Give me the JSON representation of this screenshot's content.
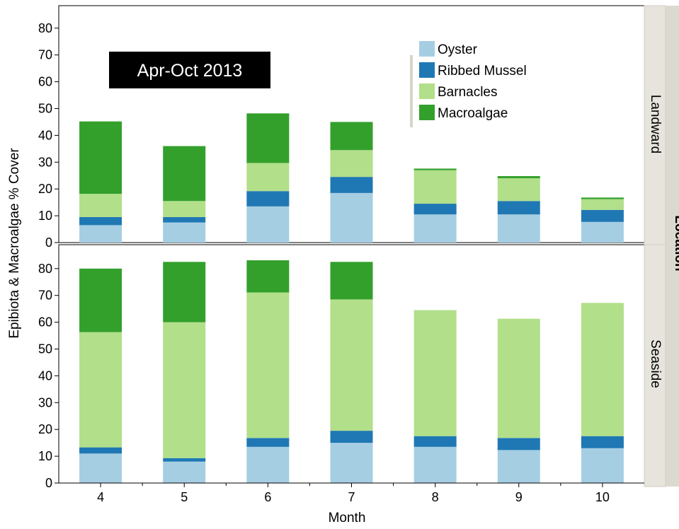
{
  "chart_data": {
    "type": "bar",
    "stacked": true,
    "annotation": "Apr-Oct 2013",
    "xlabel": "Month",
    "ylabel": "Epibiota & Macroalgae % Cover",
    "facet_label": "Location",
    "categories": [
      "4",
      "5",
      "6",
      "7",
      "8",
      "9",
      "10"
    ],
    "ylim": [
      0,
      85
    ],
    "yticks": [
      0,
      10,
      20,
      30,
      40,
      50,
      60,
      70,
      80
    ],
    "legend_position": "top-right",
    "colors": {
      "Oyster": "#a6cee3",
      "Ribbed Mussel": "#1f78b4",
      "Barnacles": "#b2df8a",
      "Macroalgae": "#33a02c"
    },
    "legend": [
      "Oyster",
      "Ribbed Mussel",
      "Barnacles",
      "Macroalgae"
    ],
    "panels": [
      {
        "label": "Landward",
        "series": [
          {
            "name": "Oyster",
            "values": [
              6.5,
              7.5,
              13.5,
              18.5,
              10.5,
              10.5,
              7.7
            ]
          },
          {
            "name": "Ribbed Mussel",
            "values": [
              3,
              2,
              5.7,
              6,
              4,
              5,
              4.5
            ]
          },
          {
            "name": "Barnacles",
            "values": [
              8.7,
              6,
              10.5,
              10,
              12.5,
              8.5,
              4
            ]
          },
          {
            "name": "Macroalgae",
            "values": [
              27,
              20.5,
              18.5,
              10.5,
              0.6,
              0.8,
              0.6
            ]
          }
        ]
      },
      {
        "label": "Seaside",
        "series": [
          {
            "name": "Oyster",
            "values": [
              11,
              8,
              13.5,
              15,
              13.5,
              12.3,
              13
            ]
          },
          {
            "name": "Ribbed Mussel",
            "values": [
              2.3,
              1.3,
              3.3,
              4.5,
              4,
              4.5,
              4.5
            ]
          },
          {
            "name": "Barnacles",
            "values": [
              43,
              50.7,
              54.3,
              49,
              47,
              44.5,
              49.7
            ]
          },
          {
            "name": "Macroalgae",
            "values": [
              23.7,
              22.5,
              12,
              14,
              0,
              0,
              0
            ]
          }
        ]
      }
    ]
  }
}
